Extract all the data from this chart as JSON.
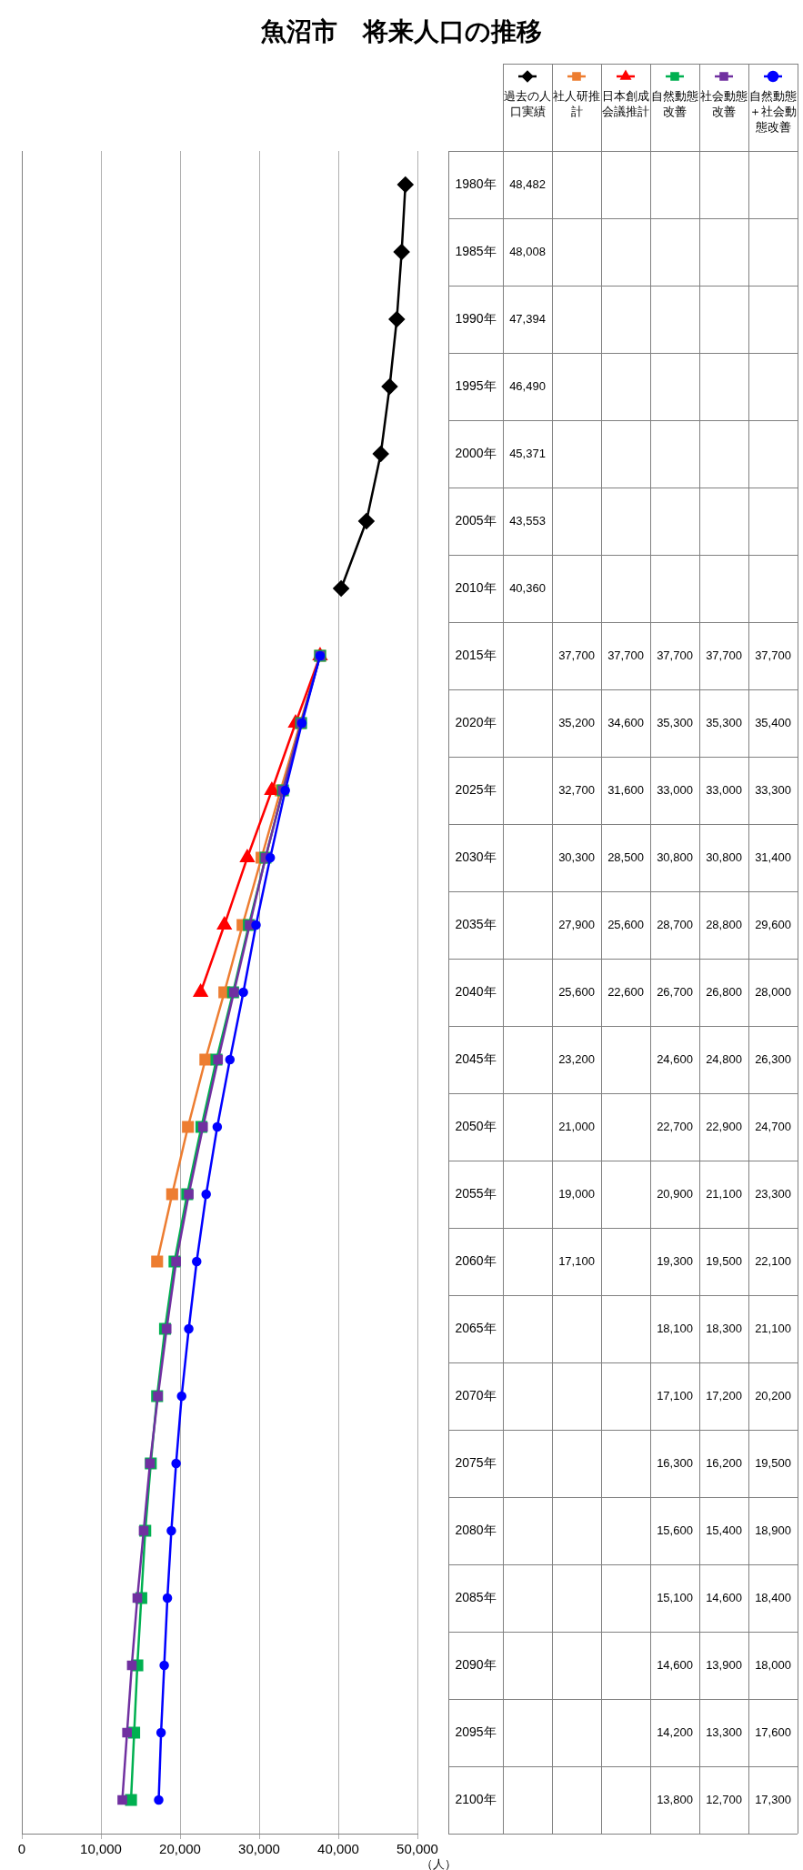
{
  "chart_data": {
    "type": "line",
    "title": "魚沼市　将来人口の推移",
    "xlabel": "（人）",
    "orientation": "horizontal",
    "categories": [
      "1980年",
      "1985年",
      "1990年",
      "1995年",
      "2000年",
      "2005年",
      "2010年",
      "2015年",
      "2020年",
      "2025年",
      "2030年",
      "2035年",
      "2040年",
      "2045年",
      "2050年",
      "2055年",
      "2060年",
      "2065年",
      "2070年",
      "2075年",
      "2080年",
      "2085年",
      "2090年",
      "2095年",
      "2100年"
    ],
    "series": [
      {
        "name": "過去の人口実績",
        "color": "#000000",
        "marker": "diamond",
        "values": [
          48482,
          48008,
          47394,
          46490,
          45371,
          43553,
          40360,
          null,
          null,
          null,
          null,
          null,
          null,
          null,
          null,
          null,
          null,
          null,
          null,
          null,
          null,
          null,
          null,
          null,
          null
        ],
        "value_labels": [
          "48,482",
          "48,008",
          "47,394",
          "46,490",
          "45,371",
          "43,553",
          "40,360",
          null,
          null,
          null,
          null,
          null,
          null,
          null,
          null,
          null,
          null,
          null,
          null,
          null,
          null,
          null,
          null,
          null,
          null
        ]
      },
      {
        "name": "社人研推計",
        "color": "#ed7d31",
        "marker": "square",
        "values": [
          null,
          null,
          null,
          null,
          null,
          null,
          null,
          37700,
          35200,
          32700,
          30300,
          27900,
          25600,
          23200,
          21000,
          19000,
          17100,
          null,
          null,
          null,
          null,
          null,
          null,
          null,
          null
        ],
        "value_labels": [
          null,
          null,
          null,
          null,
          null,
          null,
          null,
          "37,700",
          "35,200",
          "32,700",
          "30,300",
          "27,900",
          "25,600",
          "23,200",
          "21,000",
          "19,000",
          "17,100",
          null,
          null,
          null,
          null,
          null,
          null,
          null,
          null
        ]
      },
      {
        "name": "日本創成会議推計",
        "color": "#ff0000",
        "marker": "triangle",
        "values": [
          null,
          null,
          null,
          null,
          null,
          null,
          null,
          37700,
          34600,
          31600,
          28500,
          25600,
          22600,
          null,
          null,
          null,
          null,
          null,
          null,
          null,
          null,
          null,
          null,
          null,
          null
        ],
        "value_labels": [
          null,
          null,
          null,
          null,
          null,
          null,
          null,
          "37,700",
          "34,600",
          "31,600",
          "28,500",
          "25,600",
          "22,600",
          null,
          null,
          null,
          null,
          null,
          null,
          null,
          null,
          null,
          null,
          null,
          null
        ]
      },
      {
        "name": "自然動態改善",
        "color": "#00b050",
        "marker": "square",
        "values": [
          null,
          null,
          null,
          null,
          null,
          null,
          null,
          37700,
          35300,
          33000,
          30800,
          28700,
          26700,
          24600,
          22700,
          20900,
          19300,
          18100,
          17100,
          16300,
          15600,
          15100,
          14600,
          14200,
          13800
        ],
        "value_labels": [
          null,
          null,
          null,
          null,
          null,
          null,
          null,
          "37,700",
          "35,300",
          "33,000",
          "30,800",
          "28,700",
          "26,700",
          "24,600",
          "22,700",
          "20,900",
          "19,300",
          "18,100",
          "17,100",
          "16,300",
          "15,600",
          "15,100",
          "14,600",
          "14,200",
          "13,800"
        ]
      },
      {
        "name": "社会動態改善",
        "color": "#7030a0",
        "marker": "square",
        "values": [
          null,
          null,
          null,
          null,
          null,
          null,
          null,
          37700,
          35300,
          33000,
          30800,
          28800,
          26800,
          24800,
          22900,
          21100,
          19500,
          18300,
          17200,
          16200,
          15400,
          14600,
          13900,
          13300,
          12700
        ],
        "value_labels": [
          null,
          null,
          null,
          null,
          null,
          null,
          null,
          "37,700",
          "35,300",
          "33,000",
          "30,800",
          "28,800",
          "26,800",
          "24,800",
          "22,900",
          "21,100",
          "19,500",
          "18,300",
          "17,200",
          "16,200",
          "15,400",
          "14,600",
          "13,900",
          "13,300",
          "12,700"
        ]
      },
      {
        "name": "自然動態＋社会動態改善",
        "color": "#0000ff",
        "marker": "circle",
        "values": [
          null,
          null,
          null,
          null,
          null,
          null,
          null,
          37700,
          35400,
          33300,
          31400,
          29600,
          28000,
          26300,
          24700,
          23300,
          22100,
          21100,
          20200,
          19500,
          18900,
          18400,
          18000,
          17600,
          17300
        ],
        "value_labels": [
          null,
          null,
          null,
          null,
          null,
          null,
          null,
          "37,700",
          "35,400",
          "33,300",
          "31,400",
          "29,600",
          "28,000",
          "26,300",
          "24,700",
          "23,300",
          "22,100",
          "21,100",
          "20,200",
          "19,500",
          "18,900",
          "18,400",
          "18,000",
          "17,600",
          "17,300"
        ]
      }
    ],
    "xlim": [
      0,
      50000
    ],
    "xticks": [
      0,
      {
        "value": 10000,
        "label": "10,000"
      },
      {
        "value": 20000,
        "label": "20,000"
      },
      {
        "value": 30000,
        "label": "30,000"
      },
      {
        "value": 40000,
        "label": "40,000"
      },
      {
        "value": 50000,
        "label": "50,000"
      }
    ],
    "grid": "x",
    "legend": "top right"
  }
}
